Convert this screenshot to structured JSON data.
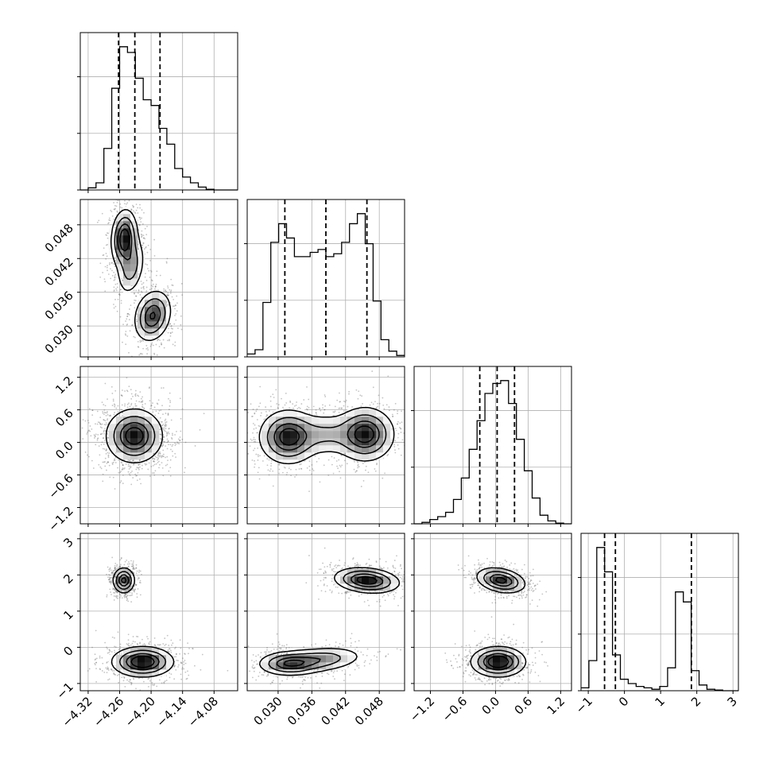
{
  "chart_data": {
    "type": "corner",
    "title": "",
    "grid": true,
    "parameters": [
      {
        "index": 0,
        "range": [
          -4.335,
          -4.035
        ],
        "ticks": [
          "−4.32",
          "−4.26",
          "−4.20",
          "−4.14",
          "−4.08"
        ],
        "tick_values": [
          -4.32,
          -4.26,
          -4.2,
          -4.14,
          -4.08
        ],
        "quantiles": [
          -4.262,
          -4.231,
          -4.183
        ],
        "histogram": {
          "bin_edges": [
            -4.335,
            -4.32,
            -4.305,
            -4.29,
            -4.275,
            -4.26,
            -4.245,
            -4.23,
            -4.215,
            -4.2,
            -4.185,
            -4.17,
            -4.155,
            -4.14,
            -4.125,
            -4.11,
            -4.095,
            -4.08,
            -4.065,
            -4.05,
            -4.035
          ],
          "counts": [
            0,
            0.015,
            0.05,
            0.29,
            0.71,
            1.0,
            0.96,
            0.78,
            0.63,
            0.59,
            0.43,
            0.32,
            0.15,
            0.09,
            0.05,
            0.02,
            0.005,
            0,
            0,
            0
          ]
        }
      },
      {
        "index": 1,
        "range": [
          0.0245,
          0.0525
        ],
        "ticks": [
          "0.030",
          "0.036",
          "0.042",
          "0.048"
        ],
        "tick_values": [
          0.03,
          0.036,
          0.042,
          0.048
        ],
        "quantiles": [
          0.0312,
          0.0385,
          0.0458
        ],
        "histogram": {
          "bin_edges": [
            0.0245,
            0.0259,
            0.0273,
            0.0287,
            0.0301,
            0.0315,
            0.0329,
            0.0343,
            0.0357,
            0.0371,
            0.0385,
            0.0399,
            0.0413,
            0.0427,
            0.0441,
            0.0455,
            0.0469,
            0.0483,
            0.0497,
            0.0511,
            0.0525
          ],
          "counts": [
            0.02,
            0.05,
            0.38,
            0.8,
            0.93,
            0.83,
            0.7,
            0.7,
            0.73,
            0.75,
            0.7,
            0.72,
            0.8,
            0.93,
            1.0,
            0.79,
            0.39,
            0.12,
            0.04,
            0.01
          ]
        }
      },
      {
        "index": 2,
        "range": [
          -1.5,
          1.4
        ],
        "ticks": [
          "−1.2",
          "−0.6",
          "0.0",
          "0.6",
          "1.2"
        ],
        "tick_values": [
          -1.2,
          -0.6,
          0.0,
          0.6,
          1.2
        ],
        "quantiles": [
          -0.29,
          0.03,
          0.35
        ],
        "histogram": {
          "bin_edges": [
            -1.5,
            -1.355,
            -1.21,
            -1.065,
            -0.92,
            -0.775,
            -0.63,
            -0.485,
            -0.34,
            -0.195,
            -0.05,
            0.095,
            0.24,
            0.385,
            0.53,
            0.675,
            0.82,
            0.965,
            1.11,
            1.255,
            1.4
          ],
          "counts": [
            0,
            0.01,
            0.03,
            0.05,
            0.08,
            0.17,
            0.32,
            0.52,
            0.72,
            0.91,
            0.98,
            1.0,
            0.84,
            0.59,
            0.37,
            0.18,
            0.06,
            0.02,
            0.005,
            0
          ]
        }
      },
      {
        "index": 3,
        "range": [
          -1.2,
          3.15
        ],
        "ticks": [
          "−1",
          "0",
          "1",
          "2",
          "3"
        ],
        "tick_values": [
          -1,
          0,
          1,
          2,
          3
        ],
        "quantiles": [
          -0.55,
          -0.25,
          1.85
        ],
        "histogram": {
          "bin_edges": [
            -1.2,
            -0.9825,
            -0.765,
            -0.5475,
            -0.33,
            -0.1125,
            0.105,
            0.3225,
            0.54,
            0.7575,
            0.975,
            1.1925,
            1.41,
            1.6275,
            1.845,
            2.0625,
            2.28,
            2.4975,
            2.715,
            2.9325,
            3.15
          ],
          "counts": [
            0.02,
            0.21,
            1.0,
            0.83,
            0.25,
            0.08,
            0.05,
            0.03,
            0.02,
            0.01,
            0.03,
            0.16,
            0.69,
            0.62,
            0.14,
            0.04,
            0.01,
            0.005,
            0,
            0
          ]
        }
      }
    ],
    "density_modes": {
      "param1_vs_param0": [
        {
          "center": [
            -4.251,
            0.0455
          ],
          "sd": [
            0.012,
            0.0025
          ],
          "weight": 0.55,
          "corr": 0.1
        },
        {
          "center": [
            -4.238,
            0.0405
          ],
          "sd": [
            0.013,
            0.0025
          ],
          "weight": 0.25,
          "corr": 0.3
        },
        {
          "center": [
            -4.197,
            0.0318
          ],
          "sd": [
            0.017,
            0.0022
          ],
          "weight": 0.45,
          "corr": 0.2
        }
      ],
      "param2_vs_param0": [
        {
          "center": [
            -4.232,
            0.12
          ],
          "sd": [
            0.026,
            0.24
          ],
          "weight": 1.0,
          "corr": 0.0
        }
      ],
      "param2_vs_param1": [
        {
          "center": [
            0.0318,
            0.1
          ],
          "sd": [
            0.0025,
            0.24
          ],
          "weight": 0.55,
          "corr": 0.0
        },
        {
          "center": [
            0.0455,
            0.15
          ],
          "sd": [
            0.0025,
            0.24
          ],
          "weight": 0.55,
          "corr": 0.0
        },
        {
          "center": [
            0.0385,
            0.15
          ],
          "sd": [
            0.003,
            0.2
          ],
          "weight": 0.2,
          "corr": 0.0
        }
      ],
      "param3_vs_param0": [
        {
          "center": [
            -4.252,
            1.85
          ],
          "sd": [
            0.01,
            0.17
          ],
          "weight": 0.45,
          "corr": 0.0
        },
        {
          "center": [
            -4.216,
            -0.4
          ],
          "sd": [
            0.028,
            0.2
          ],
          "weight": 0.55,
          "corr": 0.0
        }
      ],
      "param3_vs_param1": [
        {
          "center": [
            0.0458,
            1.85
          ],
          "sd": [
            0.0028,
            0.17
          ],
          "weight": 0.45,
          "corr": -0.2
        },
        {
          "center": [
            0.0318,
            -0.45
          ],
          "sd": [
            0.0026,
            0.16
          ],
          "weight": 0.3,
          "corr": 0.0
        },
        {
          "center": [
            0.037,
            -0.35
          ],
          "sd": [
            0.004,
            0.18
          ],
          "weight": 0.25,
          "corr": 0.3
        }
      ],
      "param3_vs_param2": [
        {
          "center": [
            0.1,
            1.85
          ],
          "sd": [
            0.22,
            0.17
          ],
          "weight": 0.45,
          "corr": -0.3
        },
        {
          "center": [
            0.05,
            -0.4
          ],
          "sd": [
            0.24,
            0.2
          ],
          "weight": 0.55,
          "corr": 0.0
        }
      ]
    },
    "colors": {
      "contour": "#000000",
      "density_dark": "#000000",
      "density_light": "#ffffff",
      "scatter": "#555555",
      "grid": "#b0b0b0",
      "frame": "#000000"
    }
  }
}
